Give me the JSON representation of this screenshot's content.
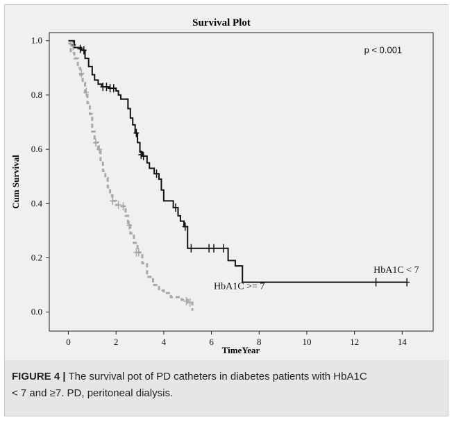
{
  "chart_data": {
    "type": "line",
    "title": "Survival Plot",
    "xlabel": "TimeYear",
    "ylabel": "Cum Survival",
    "xlim": [
      -0.8,
      15.3
    ],
    "ylim": [
      -0.07,
      1.03
    ],
    "xticks": [
      0,
      2,
      4,
      6,
      8,
      10,
      12,
      14
    ],
    "yticks": [
      0.0,
      0.2,
      0.4,
      0.6,
      0.8,
      1.0
    ],
    "ytick_labels": [
      "0.0",
      "0.2",
      "0.4",
      "0.6",
      "0.8",
      "1.0"
    ],
    "grid": false,
    "annotations": [
      {
        "text": "p < 0.001",
        "x": 13.2,
        "y": 0.955
      }
    ],
    "series": [
      {
        "name": "HbA1C < 7",
        "label_pos": [
          12.8,
          0.145
        ],
        "color": "#111111",
        "style": "solid",
        "steps": [
          [
            0,
            1.0
          ],
          [
            0.25,
            0.975
          ],
          [
            0.55,
            0.965
          ],
          [
            0.7,
            0.935
          ],
          [
            0.85,
            0.905
          ],
          [
            1.0,
            0.875
          ],
          [
            1.1,
            0.855
          ],
          [
            1.25,
            0.84
          ],
          [
            1.4,
            0.83
          ],
          [
            1.7,
            0.825
          ],
          [
            2.0,
            0.815
          ],
          [
            2.1,
            0.8
          ],
          [
            2.2,
            0.785
          ],
          [
            2.5,
            0.75
          ],
          [
            2.6,
            0.715
          ],
          [
            2.7,
            0.69
          ],
          [
            2.8,
            0.66
          ],
          [
            2.9,
            0.625
          ],
          [
            3.0,
            0.59
          ],
          [
            3.1,
            0.575
          ],
          [
            3.3,
            0.55
          ],
          [
            3.4,
            0.53
          ],
          [
            3.6,
            0.51
          ],
          [
            3.8,
            0.49
          ],
          [
            3.9,
            0.45
          ],
          [
            4.0,
            0.41
          ],
          [
            4.4,
            0.385
          ],
          [
            4.6,
            0.355
          ],
          [
            4.7,
            0.335
          ],
          [
            4.85,
            0.315
          ],
          [
            5.0,
            0.235
          ],
          [
            6.7,
            0.19
          ],
          [
            7.0,
            0.17
          ],
          [
            7.3,
            0.11
          ],
          [
            14.2,
            0.11
          ]
        ],
        "censors": [
          [
            0.2,
            0.985
          ],
          [
            0.5,
            0.97
          ],
          [
            0.65,
            0.965
          ],
          [
            1.45,
            0.83
          ],
          [
            1.6,
            0.83
          ],
          [
            1.75,
            0.825
          ],
          [
            1.9,
            0.825
          ],
          [
            2.85,
            0.66
          ],
          [
            3.05,
            0.58
          ],
          [
            3.15,
            0.575
          ],
          [
            3.7,
            0.51
          ],
          [
            4.5,
            0.385
          ],
          [
            4.9,
            0.315
          ],
          [
            5.15,
            0.235
          ],
          [
            5.9,
            0.235
          ],
          [
            6.1,
            0.235
          ],
          [
            6.5,
            0.235
          ],
          [
            12.9,
            0.11
          ],
          [
            14.2,
            0.11
          ]
        ]
      },
      {
        "name": "HbA1C >= 7",
        "label_pos": [
          6.1,
          0.085
        ],
        "color": "#a8a8a8",
        "style": "dashed",
        "steps": [
          [
            0,
            0.99
          ],
          [
            0.1,
            0.955
          ],
          [
            0.25,
            0.935
          ],
          [
            0.4,
            0.9
          ],
          [
            0.5,
            0.875
          ],
          [
            0.6,
            0.845
          ],
          [
            0.7,
            0.81
          ],
          [
            0.8,
            0.77
          ],
          [
            0.9,
            0.73
          ],
          [
            1.0,
            0.665
          ],
          [
            1.1,
            0.625
          ],
          [
            1.25,
            0.6
          ],
          [
            1.35,
            0.56
          ],
          [
            1.45,
            0.52
          ],
          [
            1.55,
            0.495
          ],
          [
            1.65,
            0.46
          ],
          [
            1.75,
            0.43
          ],
          [
            1.85,
            0.41
          ],
          [
            2.0,
            0.395
          ],
          [
            2.25,
            0.39
          ],
          [
            2.4,
            0.355
          ],
          [
            2.5,
            0.32
          ],
          [
            2.6,
            0.29
          ],
          [
            2.75,
            0.255
          ],
          [
            2.9,
            0.22
          ],
          [
            3.1,
            0.18
          ],
          [
            3.3,
            0.13
          ],
          [
            3.55,
            0.1
          ],
          [
            3.8,
            0.08
          ],
          [
            4.0,
            0.07
          ],
          [
            4.3,
            0.055
          ],
          [
            4.75,
            0.045
          ],
          [
            5.0,
            0.035
          ],
          [
            5.2,
            0.005
          ]
        ],
        "censors": [
          [
            0.2,
            0.98
          ],
          [
            0.55,
            0.88
          ],
          [
            0.75,
            0.81
          ],
          [
            1.15,
            0.625
          ],
          [
            1.3,
            0.6
          ],
          [
            1.85,
            0.41
          ],
          [
            2.1,
            0.395
          ],
          [
            2.3,
            0.39
          ],
          [
            2.55,
            0.32
          ],
          [
            2.85,
            0.22
          ],
          [
            2.95,
            0.22
          ],
          [
            4.95,
            0.04
          ],
          [
            5.1,
            0.035
          ]
        ]
      }
    ]
  },
  "caption": {
    "label": "FIGURE 4 |",
    "text_line1": " The survival pot of PD catheters in diabetes patients with HbA1C",
    "text_line2": "< 7 and ≥7. PD, peritoneal dialysis."
  }
}
